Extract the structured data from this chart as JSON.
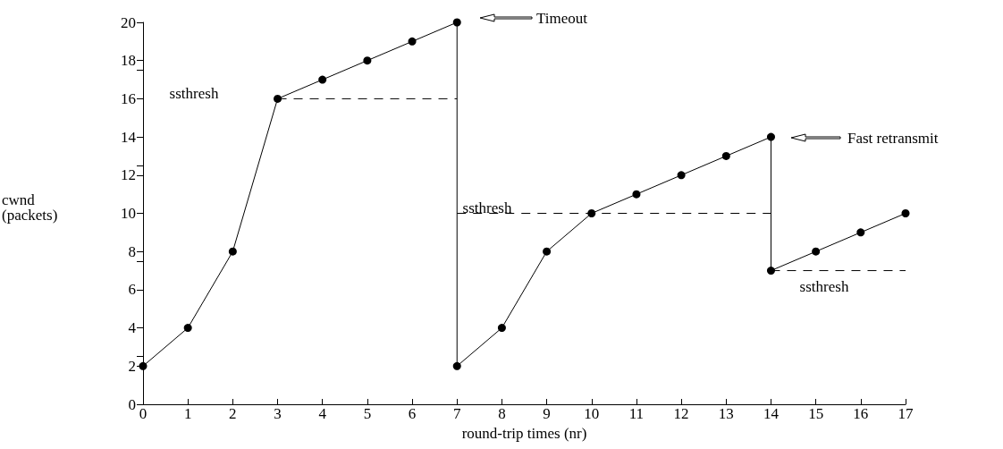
{
  "chart_data": {
    "type": "line",
    "xlabel": "round-trip times (nr)",
    "ylabel": "cwnd\n(packets)",
    "xlim": [
      0,
      17
    ],
    "xticks": [
      0,
      1,
      2,
      3,
      4,
      5,
      6,
      7,
      8,
      9,
      10,
      11,
      12,
      13,
      14,
      15,
      16,
      17
    ],
    "ylim": [
      0,
      20
    ],
    "yticks": [
      0,
      2,
      4,
      6,
      8,
      10,
      12,
      14,
      16,
      18,
      20
    ],
    "grid": false,
    "marker": "circle",
    "line_style": "solid",
    "series": [
      {
        "color": "#000000",
        "x": [
          0,
          1,
          2,
          3,
          4,
          5,
          6,
          7,
          7,
          8,
          9,
          10,
          11,
          12,
          13,
          14,
          14,
          15,
          16,
          17
        ],
        "values": [
          2,
          4,
          8,
          16,
          17,
          18,
          19,
          20,
          2,
          4,
          8,
          10,
          11,
          12,
          13,
          14,
          7,
          8,
          9,
          10
        ]
      },
      {
        "color": "#000000",
        "x": [
          3,
          7
        ],
        "values": [
          16,
          16
        ],
        "marker": "none",
        "line_style": "dashed"
      },
      {
        "color": "#000000",
        "x": [
          7,
          14
        ],
        "values": [
          10,
          10
        ],
        "marker": "none",
        "line_style": "dashed"
      },
      {
        "color": "#000000",
        "x": [
          14,
          17
        ],
        "values": [
          7,
          7
        ],
        "marker": "none",
        "line_style": "dashed"
      }
    ],
    "annotations": [
      "Timeout",
      "Fast retransmit",
      "ssthresh",
      "ssthresh",
      "ssthresh"
    ]
  }
}
